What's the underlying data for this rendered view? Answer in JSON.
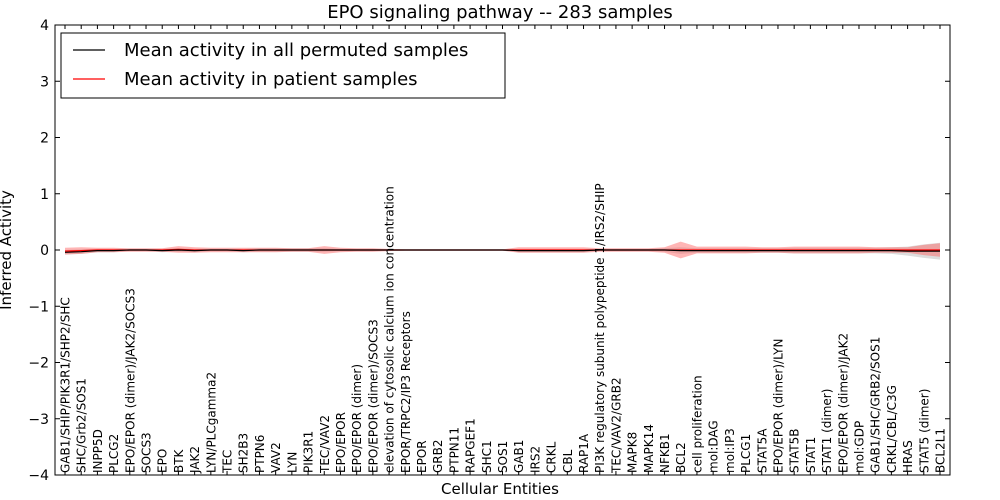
{
  "chart_data": {
    "type": "line",
    "title": "EPO signaling pathway -- 283 samples",
    "xlabel": "Cellular Entities",
    "ylabel": "Inferred Activity",
    "ylim": [
      -4,
      4
    ],
    "yticks": [
      -4,
      -3,
      -2,
      -1,
      0,
      1,
      2,
      3,
      4
    ],
    "ytick_labels": [
      "−4",
      "−3",
      "−2",
      "−1",
      "0",
      "1",
      "2",
      "3",
      "4"
    ],
    "legend": {
      "position": "top-left"
    },
    "categories": [
      "GAB1/SHIP/PIK3R1/SHP2/SHC",
      "SHC/Grb2/SOS1",
      "INPP5D",
      "PLCG2",
      "EPO/EPOR (dimer)/JAK2/SOCS3",
      "SOCS3",
      "EPO",
      "BTK",
      "JAK2",
      "LYN/PLCgamma2",
      "TEC",
      "SH2B3",
      "PTPN6",
      "VAV2",
      "LYN",
      "PIK3R1",
      "TEC/VAV2",
      "EPO/EPOR",
      "EPO/EPOR (dimer)",
      "EPO/EPOR (dimer)/SOCS3",
      "elevation of cytosolic calcium ion concentration",
      "EPOR/TRPC2/IP3 Receptors",
      "EPOR",
      "GRB2",
      "PTPN11",
      "RAPGEF1",
      "SHC1",
      "SOS1",
      "GAB1",
      "IRS2",
      "CRKL",
      "CBL",
      "RAP1A",
      "PI3K regulatory subunit polypeptide 1/IRS2/SHIP",
      "TEC/VAV2/GRB2",
      "MAPK8",
      "MAPK14",
      "NFKB1",
      "BCL2",
      "cell proliferation",
      "mol:DAG",
      "mol:IP3",
      "PLCG1",
      "STAT5A",
      "EPO/EPOR (dimer)/LYN",
      "STAT5B",
      "STAT1",
      "STAT1 (dimer)",
      "EPO/EPOR (dimer)/JAK2",
      "mol:GDP",
      "GAB1/SHC/GRB2/SOS1",
      "CRKL/CBL/C3G",
      "HRAS",
      "STAT5 (dimer)",
      "BCL2L1"
    ],
    "series": [
      {
        "name": "Mean activity in all permuted samples",
        "color": "#000000",
        "values": [
          -0.04,
          -0.03,
          -0.01,
          -0.01,
          0.0,
          0.0,
          -0.01,
          0.0,
          -0.01,
          0.0,
          0.0,
          -0.01,
          0.0,
          0.0,
          0.0,
          0.0,
          0.0,
          0.0,
          0.0,
          0.0,
          0.0,
          0.0,
          0.0,
          0.0,
          0.0,
          0.0,
          0.0,
          0.0,
          -0.01,
          -0.01,
          -0.01,
          -0.01,
          -0.01,
          0.0,
          0.0,
          0.0,
          0.0,
          0.0,
          -0.01,
          -0.01,
          -0.01,
          -0.01,
          -0.01,
          -0.01,
          -0.01,
          -0.01,
          -0.01,
          -0.01,
          -0.01,
          -0.01,
          -0.01,
          -0.01,
          -0.02,
          -0.02,
          -0.02
        ],
        "band": [
          0.04,
          0.04,
          0.03,
          0.03,
          0.02,
          0.02,
          0.03,
          0.03,
          0.03,
          0.02,
          0.02,
          0.03,
          0.03,
          0.03,
          0.03,
          0.03,
          0.03,
          0.02,
          0.02,
          0.02,
          0.01,
          0.01,
          0.01,
          0.01,
          0.01,
          0.01,
          0.01,
          0.01,
          0.03,
          0.03,
          0.03,
          0.03,
          0.03,
          0.02,
          0.02,
          0.02,
          0.02,
          0.03,
          0.06,
          0.04,
          0.04,
          0.04,
          0.04,
          0.04,
          0.04,
          0.05,
          0.05,
          0.05,
          0.05,
          0.05,
          0.05,
          0.06,
          0.08,
          0.12,
          0.15
        ]
      },
      {
        "name": "Mean activity in patient samples",
        "color": "#ff0000",
        "values": [
          -0.02,
          -0.01,
          0.0,
          0.0,
          0.0,
          0.0,
          0.0,
          0.01,
          0.0,
          0.0,
          0.0,
          0.0,
          0.0,
          0.0,
          0.0,
          0.0,
          0.0,
          0.0,
          0.0,
          0.0,
          0.0,
          0.0,
          0.0,
          0.0,
          0.0,
          0.0,
          0.0,
          0.0,
          0.0,
          0.0,
          0.0,
          0.0,
          0.0,
          0.0,
          0.0,
          0.0,
          0.0,
          0.0,
          0.0,
          0.0,
          0.0,
          0.0,
          0.0,
          0.0,
          0.0,
          0.0,
          0.0,
          0.0,
          0.0,
          0.0,
          0.0,
          0.0,
          0.0,
          0.0,
          0.0
        ],
        "band": [
          0.06,
          0.06,
          0.04,
          0.04,
          0.03,
          0.03,
          0.03,
          0.06,
          0.05,
          0.04,
          0.04,
          0.04,
          0.04,
          0.04,
          0.03,
          0.03,
          0.07,
          0.04,
          0.03,
          0.03,
          0.02,
          0.01,
          0.01,
          0.01,
          0.01,
          0.01,
          0.01,
          0.01,
          0.05,
          0.05,
          0.05,
          0.05,
          0.05,
          0.03,
          0.03,
          0.03,
          0.03,
          0.05,
          0.15,
          0.06,
          0.06,
          0.06,
          0.06,
          0.05,
          0.05,
          0.06,
          0.06,
          0.06,
          0.06,
          0.06,
          0.05,
          0.05,
          0.05,
          0.09,
          0.12
        ]
      }
    ]
  }
}
